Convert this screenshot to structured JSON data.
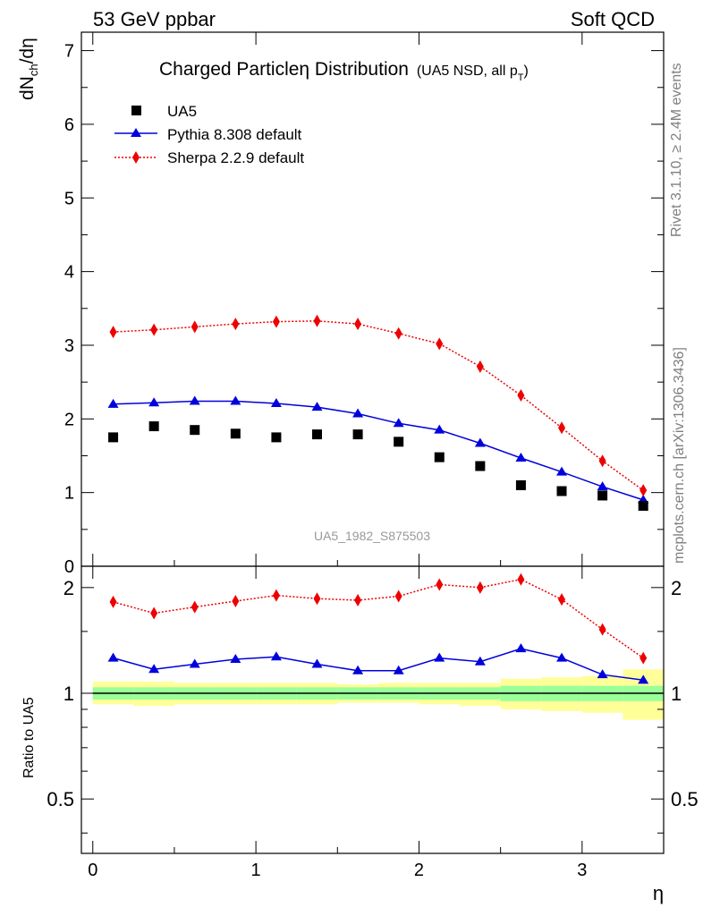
{
  "header": {
    "left": "53 GeV ppbar",
    "right": "Soft QCD"
  },
  "side_labels": {
    "rivet": "Rivet 3.1.10, ≥ 2.4M events",
    "mcplots": "mcplots.cern.ch [arXiv:1306.3436]"
  },
  "main_panel": {
    "title_main": "Charged Particleη Distribution",
    "title_sub": "(UA5 NSD, all p",
    "title_sub_index": "T",
    "title_sub_close": ")",
    "ylabel": "dN",
    "ylabel_sub": "ch",
    "ylabel_tail": "/dη",
    "watermark": "UA5_1982_S875503"
  },
  "ratio_panel": {
    "ylabel": "Ratio to UA5"
  },
  "xlabel": "η",
  "legend": [
    {
      "label": "UA5"
    },
    {
      "label": "Pythia 8.308 default"
    },
    {
      "label": "Sherpa 2.2.9 default"
    }
  ],
  "colors": {
    "data": "#000000",
    "pythia": "#0000dd",
    "sherpa": "#ee0000",
    "band_inner": "#99ff99",
    "band_outer": "#ffff99"
  },
  "chart_data": [
    {
      "type": "scatter",
      "panel": "main",
      "x": [
        0.125,
        0.375,
        0.625,
        0.875,
        1.125,
        1.375,
        1.625,
        1.875,
        2.125,
        2.375,
        2.625,
        2.875,
        3.125,
        3.375
      ],
      "xlim": [
        -0.07,
        3.5
      ],
      "ylim": [
        0,
        7.25
      ],
      "xticks": [
        "0",
        "1",
        "2",
        "3"
      ],
      "yticks": [
        "0",
        "1",
        "2",
        "3",
        "4",
        "5",
        "6",
        "7"
      ],
      "legend_position": "top-left",
      "series": [
        {
          "name": "UA5",
          "style": "square-markers",
          "values": [
            1.75,
            1.9,
            1.85,
            1.8,
            1.75,
            1.79,
            1.79,
            1.69,
            1.48,
            1.36,
            1.1,
            1.02,
            0.96,
            0.82
          ]
        },
        {
          "name": "Pythia 8.308 default",
          "style": "solid-line-triangles",
          "values": [
            2.2,
            2.22,
            2.24,
            2.24,
            2.21,
            2.16,
            2.07,
            1.94,
            1.85,
            1.67,
            1.47,
            1.28,
            1.08,
            0.9
          ]
        },
        {
          "name": "Sherpa 2.2.9 default",
          "style": "dotted-line-diamonds",
          "values": [
            3.18,
            3.21,
            3.25,
            3.29,
            3.32,
            3.33,
            3.29,
            3.16,
            3.02,
            2.71,
            2.32,
            1.88,
            1.43,
            1.03
          ]
        }
      ]
    },
    {
      "type": "line",
      "panel": "ratio",
      "x": [
        0.125,
        0.375,
        0.625,
        0.875,
        1.125,
        1.375,
        1.625,
        1.875,
        2.125,
        2.375,
        2.625,
        2.875,
        3.125,
        3.375
      ],
      "xlim": [
        -0.07,
        3.5
      ],
      "ylim": [
        0.35,
        2.3
      ],
      "yticks": [
        "0.5",
        "1",
        "2"
      ],
      "ylabel": "Ratio to UA5",
      "series": [
        {
          "name": "Pythia 8.308 default",
          "values": [
            1.26,
            1.17,
            1.21,
            1.25,
            1.27,
            1.21,
            1.16,
            1.16,
            1.26,
            1.23,
            1.34,
            1.26,
            1.13,
            1.09
          ]
        },
        {
          "name": "Sherpa 2.2.9 default",
          "values": [
            1.82,
            1.69,
            1.76,
            1.83,
            1.9,
            1.86,
            1.84,
            1.89,
            2.04,
            2.0,
            2.11,
            1.85,
            1.52,
            1.26
          ]
        }
      ],
      "bands": {
        "x_edges": [
          0.0,
          0.25,
          0.5,
          0.75,
          1.0,
          1.25,
          1.5,
          1.75,
          2.0,
          2.25,
          2.5,
          2.75,
          3.0,
          3.25,
          3.5
        ],
        "inner_lo": [
          0.96,
          0.96,
          0.96,
          0.96,
          0.96,
          0.96,
          0.96,
          0.96,
          0.96,
          0.96,
          0.95,
          0.95,
          0.95,
          0.95
        ],
        "inner_hi": [
          1.04,
          1.04,
          1.04,
          1.04,
          1.04,
          1.04,
          1.04,
          1.04,
          1.04,
          1.04,
          1.05,
          1.05,
          1.05,
          1.05
        ],
        "outer_lo": [
          0.93,
          0.92,
          0.93,
          0.93,
          0.93,
          0.93,
          0.94,
          0.94,
          0.93,
          0.92,
          0.9,
          0.89,
          0.88,
          0.84
        ],
        "outer_hi": [
          1.08,
          1.08,
          1.07,
          1.07,
          1.07,
          1.07,
          1.06,
          1.07,
          1.07,
          1.07,
          1.1,
          1.11,
          1.12,
          1.17
        ]
      }
    }
  ]
}
